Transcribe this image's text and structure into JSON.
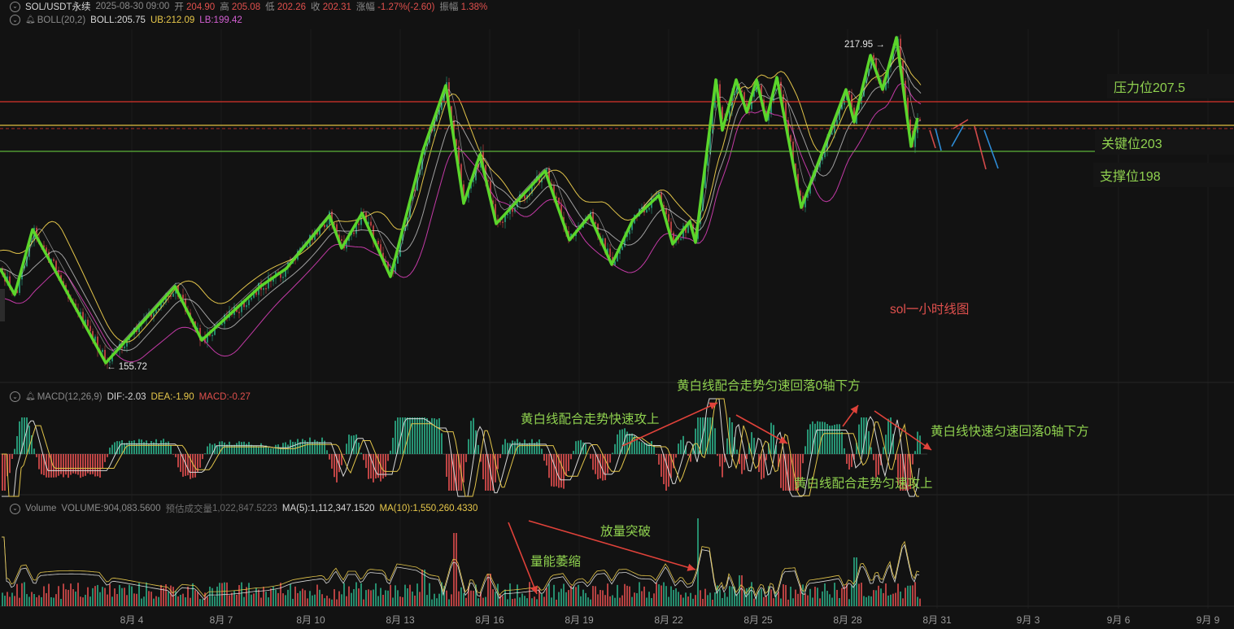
{
  "header": {
    "symbol": "SOL/USDT永续",
    "datetime": "2025-08-30 09:00",
    "open_label": "开",
    "open_value": "204.90",
    "high_label": "高",
    "high_value": "205.08",
    "low_label": "低",
    "low_value": "202.26",
    "close_label": "收",
    "close_value": "202.31",
    "change_label": "涨幅",
    "change_value": "-1.27%(-2.60)",
    "amplitude_label": "振幅",
    "amplitude_value": "1.38%"
  },
  "boll": {
    "label": "BOLL(20,2)",
    "mid": "BOLL:205.75",
    "ub": "UB:212.09",
    "lb": "LB:199.42"
  },
  "macd": {
    "label": "MACD(12,26,9)",
    "dif": "DIF:-2.03",
    "dea": "DEA:-1.90",
    "macd": "MACD:-0.27"
  },
  "volume": {
    "label": "Volume",
    "volume": "VOLUME:904,083.5600",
    "est_label": "预估成交量",
    "est_value": "1,022,847.5223",
    "ma5": "MA(5):1,112,347.1520",
    "ma10": "MA(10):1,550,260.4330"
  },
  "levels": {
    "resistance": "压力位207.5",
    "key": "关键位203",
    "support": "支撑位198"
  },
  "markers": {
    "high": "217.95",
    "low": "155.72"
  },
  "annotations": {
    "chart_title": "sol一小时线图",
    "macd_fast_up": "黄白线配合走势快速攻上",
    "macd_even_down_1": "黄白线配合走势匀速回落0轴下方",
    "macd_even_up": "黄白线配合走势匀速攻上",
    "macd_fast_even_down": "黄白线快速匀速回落0轴下方",
    "vol_shrink": "量能萎缩",
    "vol_breakout": "放量突破"
  },
  "x_ticks": [
    "8月 4",
    "8月 7",
    "8月 10",
    "8月 13",
    "8月 16",
    "8月 19",
    "8月 22",
    "8月 25",
    "8月 28",
    "8月 31",
    "9月 3",
    "9月 6",
    "9月 9"
  ],
  "colors": {
    "background": "#121212",
    "resistance_line": "#d9342b",
    "key_line": "#e0c040",
    "support_line": "#5db33a",
    "trend_line": "#5bd62b",
    "boll_mid": "#d0d0d0",
    "boll_ub": "#e2c44a",
    "boll_lb": "#c33aa6",
    "up": "#2aa37f",
    "down": "#d24a4a"
  }
}
